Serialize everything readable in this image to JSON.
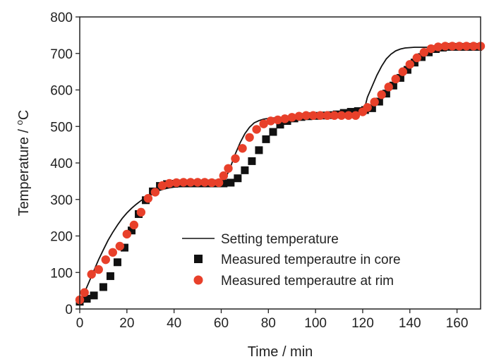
{
  "chart_data": {
    "type": "scatter",
    "title": "",
    "xlabel": "Time / min",
    "ylabel": "Temperature / °C",
    "ylabel_parts": {
      "before": "Temperature / ",
      "sup": "o",
      "after": "C"
    },
    "xlim": [
      0,
      170
    ],
    "ylim": [
      0,
      800
    ],
    "xticks": [
      0,
      20,
      40,
      60,
      80,
      100,
      120,
      140,
      160
    ],
    "yticks": [
      0,
      100,
      200,
      300,
      400,
      500,
      600,
      700,
      800
    ],
    "grid": false,
    "legend_position": "bottom-right",
    "colors": {
      "setting": "#111111",
      "core": "#111111",
      "rim": "#e8402a"
    },
    "series": [
      {
        "name": "Setting temperature",
        "style": "line",
        "x": [
          0,
          2,
          4,
          6,
          8,
          10,
          12,
          14,
          16,
          18,
          20,
          22,
          24,
          26,
          28,
          30,
          32,
          34,
          36,
          38,
          40,
          45,
          50,
          55,
          58,
          60,
          62,
          64,
          66,
          68,
          70,
          72,
          74,
          76,
          78,
          80,
          82,
          84,
          86,
          88,
          90,
          95,
          100,
          105,
          110,
          115,
          118,
          120,
          121,
          122,
          124,
          126,
          128,
          130,
          132,
          134,
          136,
          138,
          140,
          142,
          144,
          146,
          148,
          150,
          155,
          160,
          165,
          170
        ],
        "y": [
          20,
          45,
          75,
          105,
          135,
          162,
          188,
          210,
          230,
          248,
          263,
          276,
          287,
          297,
          306,
          314,
          320,
          325,
          329,
          332,
          334,
          336,
          337,
          338,
          340,
          345,
          360,
          390,
          425,
          455,
          480,
          498,
          510,
          516,
          520,
          522,
          523,
          524,
          525,
          526,
          527,
          528,
          529,
          530,
          531,
          532,
          534,
          540,
          555,
          580,
          610,
          640,
          665,
          685,
          698,
          707,
          712,
          715,
          716,
          717,
          717,
          717,
          717,
          717,
          717,
          717,
          717,
          717
        ]
      },
      {
        "name": "Measured temperautre in core",
        "style": "square",
        "x": [
          0,
          3,
          6,
          10,
          13,
          16,
          19,
          22,
          25,
          28,
          31,
          34,
          37,
          40,
          43,
          46,
          49,
          52,
          55,
          58,
          61,
          64,
          67,
          70,
          73,
          76,
          79,
          82,
          85,
          88,
          91,
          94,
          97,
          100,
          103,
          106,
          109,
          112,
          115,
          118,
          121,
          124,
          127,
          130,
          133,
          136,
          139,
          142,
          145,
          148,
          151,
          154,
          157,
          160,
          163,
          166,
          169
        ],
        "y": [
          20,
          28,
          37,
          60,
          90,
          128,
          168,
          215,
          260,
          298,
          322,
          337,
          342,
          343,
          344,
          344,
          344,
          344,
          344,
          344,
          344,
          346,
          358,
          380,
          405,
          435,
          465,
          485,
          505,
          515,
          522,
          526,
          528,
          529,
          530,
          531,
          533,
          537,
          540,
          542,
          545,
          550,
          568,
          590,
          612,
          633,
          655,
          675,
          690,
          703,
          712,
          716,
          718,
          718,
          718,
          718,
          718
        ]
      },
      {
        "name": "Measured temperautre at rim",
        "style": "circle",
        "x": [
          0,
          2,
          5,
          8,
          11,
          14,
          17,
          20,
          23,
          26,
          29,
          32,
          35,
          38,
          41,
          44,
          47,
          50,
          53,
          56,
          59,
          61,
          63,
          66,
          69,
          72,
          75,
          78,
          81,
          84,
          87,
          90,
          93,
          96,
          99,
          102,
          105,
          108,
          111,
          114,
          117,
          120,
          122,
          125,
          128,
          131,
          134,
          137,
          140,
          143,
          146,
          149,
          152,
          155,
          158,
          161,
          164,
          167,
          170
        ],
        "y": [
          25,
          45,
          95,
          108,
          135,
          155,
          172,
          205,
          230,
          265,
          303,
          320,
          338,
          344,
          346,
          347,
          347,
          347,
          347,
          346,
          346,
          365,
          385,
          412,
          440,
          470,
          492,
          507,
          515,
          518,
          521,
          525,
          528,
          530,
          530,
          530,
          530,
          530,
          530,
          530,
          530,
          540,
          552,
          567,
          587,
          608,
          630,
          650,
          670,
          688,
          703,
          713,
          718,
          720,
          720,
          720,
          720,
          720,
          720
        ]
      }
    ]
  }
}
